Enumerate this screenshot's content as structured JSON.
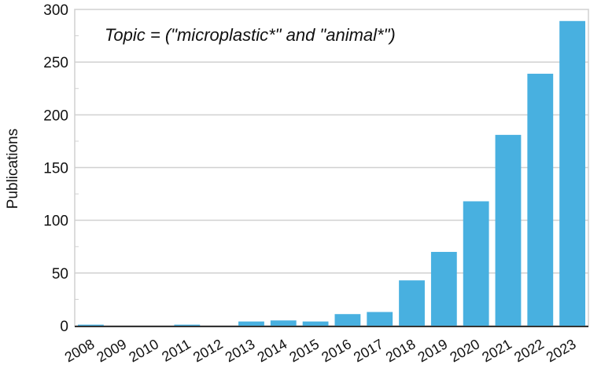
{
  "chart_data": {
    "type": "bar",
    "title": "",
    "annotation": "Topic = (\"microplastic*\" and \"animal*\")",
    "xlabel": "",
    "ylabel": "Publications",
    "ylim": [
      0,
      300
    ],
    "yticks": [
      0,
      50,
      100,
      150,
      200,
      250,
      300
    ],
    "grid": true,
    "bar_color": "#48b0e0",
    "categories": [
      "2008",
      "2009",
      "2010",
      "2011",
      "2012",
      "2013",
      "2014",
      "2015",
      "2016",
      "2017",
      "2018",
      "2019",
      "2020",
      "2021",
      "2022",
      "2023"
    ],
    "values": [
      1,
      0,
      0,
      1,
      0,
      4,
      5,
      4,
      11,
      13,
      43,
      70,
      118,
      181,
      239,
      289
    ]
  }
}
